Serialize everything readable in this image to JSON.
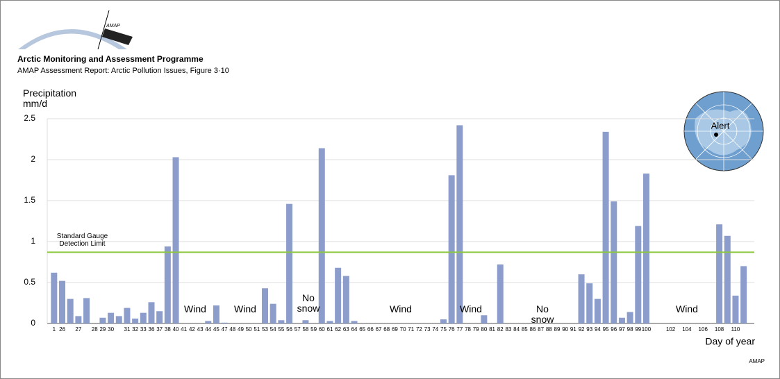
{
  "header": {
    "logo": "AMAP",
    "org": "Arctic Monitoring and Assessment Programme",
    "subtitle": "AMAP Assessment Report: Arctic Pollution Issues, Figure 3·10"
  },
  "chart_data": {
    "type": "bar",
    "ylabel": "Precipitation mm/d",
    "xlabel": "Day of year",
    "categories": [
      "1",
      "26",
      null,
      "27",
      null,
      "28",
      "29",
      "30",
      null,
      "31",
      "32",
      "33",
      "36",
      "37",
      "38",
      "40",
      "41",
      "42",
      "43",
      "44",
      "45",
      "47",
      "48",
      "49",
      "50",
      "51",
      "53",
      "54",
      "55",
      "56",
      "57",
      "58",
      "59",
      "60",
      "61",
      "62",
      "63",
      "64",
      "65",
      "66",
      "67",
      "68",
      "69",
      "70",
      "71",
      "72",
      "73",
      "74",
      "75",
      "76",
      "77",
      "78",
      "79",
      "80",
      "81",
      "82",
      "83",
      "84",
      "85",
      "86",
      "87",
      "88",
      "89",
      "90",
      "91",
      "92",
      "93",
      "94",
      "95",
      "96",
      "97",
      "98",
      "99",
      "100",
      null,
      null,
      "102",
      null,
      "104",
      null,
      "106",
      null,
      "108",
      null,
      "110",
      null
    ],
    "values": [
      0.62,
      0.52,
      0.3,
      0.09,
      0.31,
      null,
      0.07,
      0.13,
      0.09,
      0.19,
      0.06,
      0.13,
      0.26,
      0.15,
      0.94,
      2.03,
      null,
      null,
      null,
      0.03,
      0.22,
      0.01,
      null,
      null,
      null,
      null,
      0.43,
      0.24,
      0.04,
      1.46,
      null,
      0.04,
      null,
      2.14,
      0.03,
      0.68,
      0.58,
      0.03,
      null,
      null,
      null,
      null,
      null,
      null,
      null,
      null,
      null,
      null,
      0.05,
      1.81,
      2.42,
      null,
      null,
      0.1,
      null,
      0.72,
      null,
      null,
      null,
      null,
      null,
      null,
      null,
      null,
      null,
      0.6,
      0.49,
      0.3,
      2.34,
      1.49,
      0.07,
      0.14,
      1.19,
      1.83,
      null,
      null,
      null,
      null,
      null,
      null,
      null,
      null,
      1.21,
      1.07,
      0.34,
      0.7
    ],
    "color": "#8c9dcc",
    "ylim": [
      0,
      2.5
    ],
    "yticks": [
      0,
      0.5,
      1,
      1.5,
      2,
      2.5
    ],
    "grid": true,
    "threshold": {
      "label": "Standard Gauge Detection Limit",
      "value": 0.87,
      "color": "#8dc63f"
    },
    "annotations": [
      "Wind",
      "Wind",
      "No snow",
      "Wind",
      "Wind",
      "No snow",
      "Wind"
    ]
  },
  "map": {
    "label": "Alert"
  },
  "footer": "AMAP"
}
